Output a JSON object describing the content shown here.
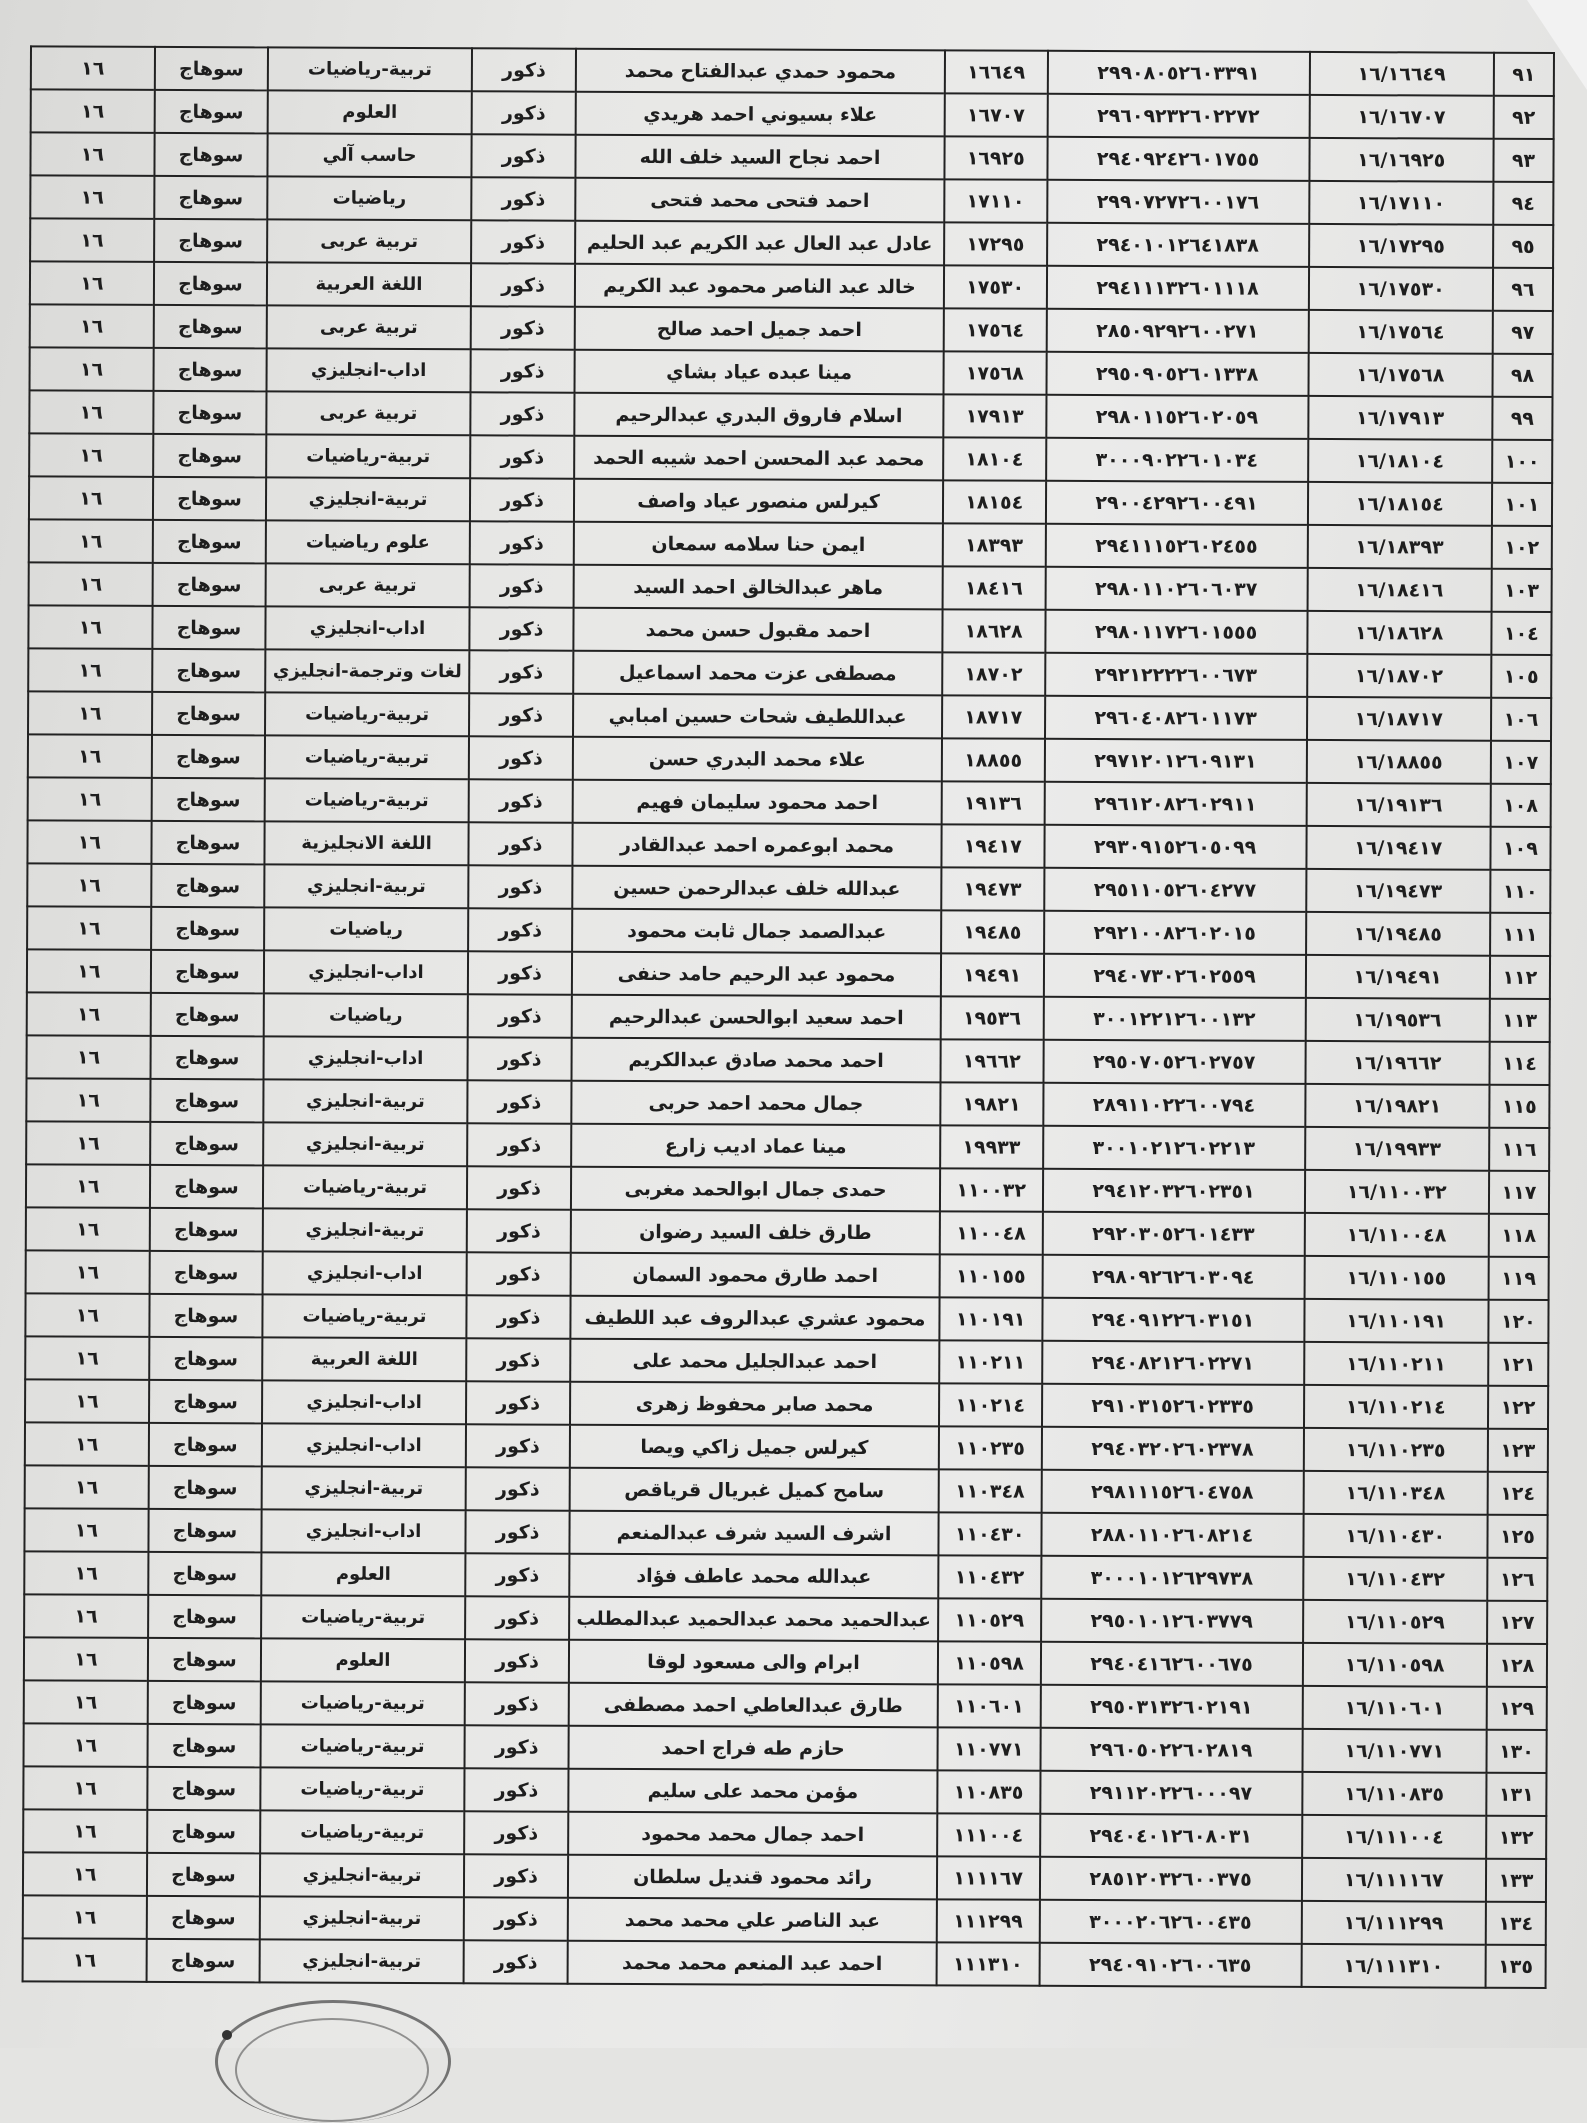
{
  "table": {
    "rows": [
      [
        "٩١",
        "١٦/١٦٦٤٩",
        "٢٩٩٠٨٠٥٢٦٠٣٣٩١",
        "١٦٦٤٩",
        "محمود حمدي عبدالفتاح محمد",
        "ذكور",
        "تربية-رياضيات",
        "سوهاج",
        "١٦"
      ],
      [
        "٩٢",
        "١٦/١٦٧٠٧",
        "٢٩٦٠٩٢٣٢٦٠٢٢٧٢",
        "١٦٧٠٧",
        "علاء بسيوني احمد هريدي",
        "ذكور",
        "العلوم",
        "سوهاج",
        "١٦"
      ],
      [
        "٩٣",
        "١٦/١٦٩٢٥",
        "٢٩٤٠٩٢٤٢٦٠١٧٥٥",
        "١٦٩٢٥",
        "احمد نجاح السيد خلف الله",
        "ذكور",
        "حاسب آلي",
        "سوهاج",
        "١٦"
      ],
      [
        "٩٤",
        "١٦/١٧١١٠",
        "٢٩٩٠٧٢٧٢٦٠٠١٧٦",
        "١٧١١٠",
        "احمد فتحى محمد فتحى",
        "ذكور",
        "رياضيات",
        "سوهاج",
        "١٦"
      ],
      [
        "٩٥",
        "١٦/١٧٢٩٥",
        "٢٩٤٠١٠١٢٦٤١٨٣٨",
        "١٧٢٩٥",
        "عادل عبد العال عبد الكريم عبد الحليم",
        "ذكور",
        "تربية عربى",
        "سوهاج",
        "١٦"
      ],
      [
        "٩٦",
        "١٦/١٧٥٣٠",
        "٢٩٤١١١٣٢٦٠١١١٨",
        "١٧٥٣٠",
        "خالد عبد الناصر محمود عبد الكريم",
        "ذكور",
        "اللغة العربية",
        "سوهاج",
        "١٦"
      ],
      [
        "٩٧",
        "١٦/١٧٥٦٤",
        "٢٨٥٠٩٢٩٢٦٠٠٢٧١",
        "١٧٥٦٤",
        "احمد جميل احمد صالح",
        "ذكور",
        "تربية عربى",
        "سوهاج",
        "١٦"
      ],
      [
        "٩٨",
        "١٦/١٧٥٦٨",
        "٢٩٥٠٩٠٥٢٦٠١٣٣٨",
        "١٧٥٦٨",
        "مينا عبده عياد بشاي",
        "ذكور",
        "اداب-انجليزي",
        "سوهاج",
        "١٦"
      ],
      [
        "٩٩",
        "١٦/١٧٩١٣",
        "٢٩٨٠١١٥٢٦٠٢٠٥٩",
        "١٧٩١٣",
        "اسلام فاروق البدري عبدالرحيم",
        "ذكور",
        "تربية عربى",
        "سوهاج",
        "١٦"
      ],
      [
        "١٠٠",
        "١٦/١٨١٠٤",
        "٣٠٠٠٩٠٢٢٦٠١٠٣٤",
        "١٨١٠٤",
        "محمد عبد المحسن احمد شيبه الحمد",
        "ذكور",
        "تربية-رياضيات",
        "سوهاج",
        "١٦"
      ],
      [
        "١٠١",
        "١٦/١٨١٥٤",
        "٢٩٠٠٤٢٩٢٦٠٠٤٩١",
        "١٨١٥٤",
        "كيرلس منصور عياد واصف",
        "ذكور",
        "تربية-انجليزي",
        "سوهاج",
        "١٦"
      ],
      [
        "١٠٢",
        "١٦/١٨٣٩٣",
        "٢٩٤١١١٥٢٦٠٢٤٥٥",
        "١٨٣٩٣",
        "ايمن حنا سلامه سمعان",
        "ذكور",
        "علوم رياضيات",
        "سوهاج",
        "١٦"
      ],
      [
        "١٠٣",
        "١٦/١٨٤١٦",
        "٢٩٨٠١١٠٢٦٠٦٠٣٧",
        "١٨٤١٦",
        "ماهر عبدالخالق احمد السيد",
        "ذكور",
        "تربية عربى",
        "سوهاج",
        "١٦"
      ],
      [
        "١٠٤",
        "١٦/١٨٦٢٨",
        "٢٩٨٠١١٧٢٦٠١٥٥٥",
        "١٨٦٢٨",
        "احمد مقبول حسن محمد",
        "ذكور",
        "اداب-انجليزي",
        "سوهاج",
        "١٦"
      ],
      [
        "١٠٥",
        "١٦/١٨٧٠٢",
        "٢٩٢١٢٢٢٢٦٠٠٦٧٣",
        "١٨٧٠٢",
        "مصطفى عزت محمد اسماعيل",
        "ذكور",
        "لغات وترجمة-انجليزي",
        "سوهاج",
        "١٦"
      ],
      [
        "١٠٦",
        "١٦/١٨٧١٧",
        "٢٩٦٠٤٠٨٢٦٠١١٧٣",
        "١٨٧١٧",
        "عبداللطيف شحات حسين امبابي",
        "ذكور",
        "تربية-رياضيات",
        "سوهاج",
        "١٦"
      ],
      [
        "١٠٧",
        "١٦/١٨٨٥٥",
        "٢٩٧١٢٠١٢٦٠٩١٣١",
        "١٨٨٥٥",
        "علاء محمد البدري حسن",
        "ذكور",
        "تربية-رياضيات",
        "سوهاج",
        "١٦"
      ],
      [
        "١٠٨",
        "١٦/١٩١٣٦",
        "٢٩٦١٢٠٨٢٦٠٢٩١١",
        "١٩١٣٦",
        "احمد محمود سليمان فهيم",
        "ذكور",
        "تربية-رياضيات",
        "سوهاج",
        "١٦"
      ],
      [
        "١٠٩",
        "١٦/١٩٤١٧",
        "٢٩٣٠٩١٥٢٦٠٥٠٩٩",
        "١٩٤١٧",
        "محمد ابوعمره احمد عبدالقادر",
        "ذكور",
        "اللغة الانجليزية",
        "سوهاج",
        "١٦"
      ],
      [
        "١١٠",
        "١٦/١٩٤٧٣",
        "٢٩٥١١٠٥٢٦٠٤٢٧٧",
        "١٩٤٧٣",
        "عبدالله خلف عبدالرحمن حسين",
        "ذكور",
        "تربية-انجليزي",
        "سوهاج",
        "١٦"
      ],
      [
        "١١١",
        "١٦/١٩٤٨٥",
        "٢٩٢١٠٠٨٢٦٠٢٠١٥",
        "١٩٤٨٥",
        "عبدالصمد جمال ثابت محمود",
        "ذكور",
        "رياضيات",
        "سوهاج",
        "١٦"
      ],
      [
        "١١٢",
        "١٦/١٩٤٩١",
        "٢٩٤٠٧٣٠٢٦٠٢٥٥٩",
        "١٩٤٩١",
        "محمود عبد الرحيم حامد حنفى",
        "ذكور",
        "اداب-انجليزي",
        "سوهاج",
        "١٦"
      ],
      [
        "١١٣",
        "١٦/١٩٥٣٦",
        "٣٠٠١٢٢١٢٦٠٠١٣٢",
        "١٩٥٣٦",
        "احمد سعيد ابوالحسن عبدالرحيم",
        "ذكور",
        "رياضيات",
        "سوهاج",
        "١٦"
      ],
      [
        "١١٤",
        "١٦/١٩٦٦٢",
        "٢٩٥٠٧٠٥٢٦٠٢٧٥٧",
        "١٩٦٦٢",
        "احمد محمد صادق عبدالكريم",
        "ذكور",
        "اداب-انجليزي",
        "سوهاج",
        "١٦"
      ],
      [
        "١١٥",
        "١٦/١٩٨٢١",
        "٢٨٩١١٠٢٢٦٠٠٧٩٤",
        "١٩٨٢١",
        "جمال محمد احمد حربى",
        "ذكور",
        "تربية-انجليزي",
        "سوهاج",
        "١٦"
      ],
      [
        "١١٦",
        "١٦/١٩٩٣٣",
        "٣٠٠١٠٢١٢٦٠٢٢١٣",
        "١٩٩٣٣",
        "مينا عماد اديب زارع",
        "ذكور",
        "تربية-انجليزي",
        "سوهاج",
        "١٦"
      ],
      [
        "١١٧",
        "١٦/١١٠٠٣٢",
        "٢٩٤١٢٠٣٢٦٠٢٣٥١",
        "١١٠٠٣٢",
        "حمدى جمال ابوالحمد مغربى",
        "ذكور",
        "تربية-رياضيات",
        "سوهاج",
        "١٦"
      ],
      [
        "١١٨",
        "١٦/١١٠٠٤٨",
        "٢٩٢٠٣٠٥٢٦٠١٤٣٣",
        "١١٠٠٤٨",
        "طارق خلف السيد رضوان",
        "ذكور",
        "تربية-انجليزي",
        "سوهاج",
        "١٦"
      ],
      [
        "١١٩",
        "١٦/١١٠١٥٥",
        "٢٩٨٠٩٢٦٢٦٠٣٠٩٤",
        "١١٠١٥٥",
        "احمد طارق محمود السمان",
        "ذكور",
        "اداب-انجليزي",
        "سوهاج",
        "١٦"
      ],
      [
        "١٢٠",
        "١٦/١١٠١٩١",
        "٢٩٤٠٩١٢٢٦٠٣١٥١",
        "١١٠١٩١",
        "محمود عشري عبدالروف عبد اللطيف",
        "ذكور",
        "تربية-رياضيات",
        "سوهاج",
        "١٦"
      ],
      [
        "١٢١",
        "١٦/١١٠٢١١",
        "٢٩٤٠٨٢١٢٦٠٢٢٧١",
        "١١٠٢١١",
        "احمد عبدالجليل محمد على",
        "ذكور",
        "اللغة العربية",
        "سوهاج",
        "١٦"
      ],
      [
        "١٢٢",
        "١٦/١١٠٢١٤",
        "٢٩١٠٣١٥٢٦٠٢٣٣٥",
        "١١٠٢١٤",
        "محمد صابر محفوظ زهرى",
        "ذكور",
        "اداب-انجليزي",
        "سوهاج",
        "١٦"
      ],
      [
        "١٢٣",
        "١٦/١١٠٢٣٥",
        "٢٩٤٠٣٢٠٢٦٠٢٣٧٨",
        "١١٠٢٣٥",
        "كيرلس جميل زاكي ويصا",
        "ذكور",
        "اداب-انجليزي",
        "سوهاج",
        "١٦"
      ],
      [
        "١٢٤",
        "١٦/١١٠٣٤٨",
        "٢٩٨١١١٥٢٦٠٤٧٥٨",
        "١١٠٣٤٨",
        "سامح كميل غبريال قرياقص",
        "ذكور",
        "تربية-انجليزي",
        "سوهاج",
        "١٦"
      ],
      [
        "١٢٥",
        "١٦/١١٠٤٣٠",
        "٢٨٨٠١١٠٢٦٠٨٢١٤",
        "١١٠٤٣٠",
        "اشرف السيد شرف عبدالمنعم",
        "ذكور",
        "اداب-انجليزي",
        "سوهاج",
        "١٦"
      ],
      [
        "١٢٦",
        "١٦/١١٠٤٣٢",
        "٣٠٠٠١٠١٢٦٢٩٧٣٨",
        "١١٠٤٣٢",
        "عبدالله محمد عاطف فؤاد",
        "ذكور",
        "العلوم",
        "سوهاج",
        "١٦"
      ],
      [
        "١٢٧",
        "١٦/١١٠٥٢٩",
        "٢٩٥٠١٠١٢٦٠٣٧٧٩",
        "١١٠٥٢٩",
        "عبدالحميد محمد عبدالحميد عبدالمطلب",
        "ذكور",
        "تربية-رياضيات",
        "سوهاج",
        "١٦"
      ],
      [
        "١٢٨",
        "١٦/١١٠٥٩٨",
        "٢٩٤٠٤١٦٢٦٠٠٦٧٥",
        "١١٠٥٩٨",
        "ابرام والى مسعود لوقا",
        "ذكور",
        "العلوم",
        "سوهاج",
        "١٦"
      ],
      [
        "١٢٩",
        "١٦/١١٠٦٠١",
        "٢٩٥٠٣١٣٢٦٠٢١٩١",
        "١١٠٦٠١",
        "طارق عبدالعاطي احمد مصطفى",
        "ذكور",
        "تربية-رياضيات",
        "سوهاج",
        "١٦"
      ],
      [
        "١٣٠",
        "١٦/١١٠٧٧١",
        "٢٩٦٠٥٠٢٢٦٠٢٨١٩",
        "١١٠٧٧١",
        "حازم طه فراج احمد",
        "ذكور",
        "تربية-رياضيات",
        "سوهاج",
        "١٦"
      ],
      [
        "١٣١",
        "١٦/١١٠٨٣٥",
        "٢٩١١٢٠٢٢٦٠٠٠٩٧",
        "١١٠٨٣٥",
        "مؤمن محمد على سليم",
        "ذكور",
        "تربية-رياضيات",
        "سوهاج",
        "١٦"
      ],
      [
        "١٣٢",
        "١٦/١١١٠٠٤",
        "٢٩٤٠٤٠١٢٦٠٨٠٣١",
        "١١١٠٠٤",
        "احمد جمال محمد محمود",
        "ذكور",
        "تربية-رياضيات",
        "سوهاج",
        "١٦"
      ],
      [
        "١٣٣",
        "١٦/١١١١٦٧",
        "٢٨٥١٢٠٣٢٦٠٠٣٧٥",
        "١١١١٦٧",
        "رائد محمود قنديل سلطان",
        "ذكور",
        "تربية-انجليزي",
        "سوهاج",
        "١٦"
      ],
      [
        "١٣٤",
        "١٦/١١١٢٩٩",
        "٣٠٠٠٢٠٦٢٦٠٠٤٣٥",
        "١١١٢٩٩",
        "عبد الناصر علي محمد محمد",
        "ذكور",
        "تربية-انجليزي",
        "سوهاج",
        "١٦"
      ],
      [
        "١٣٥",
        "١٦/١١١٣١٠",
        "٢٩٤٠٩١٠٢٦٠٠٦٣٥",
        "١١١٣١٠",
        "احمد عبد المنعم محمد محمد",
        "ذكور",
        "تربية-انجليزي",
        "سوهاج",
        "١٦"
      ]
    ]
  }
}
